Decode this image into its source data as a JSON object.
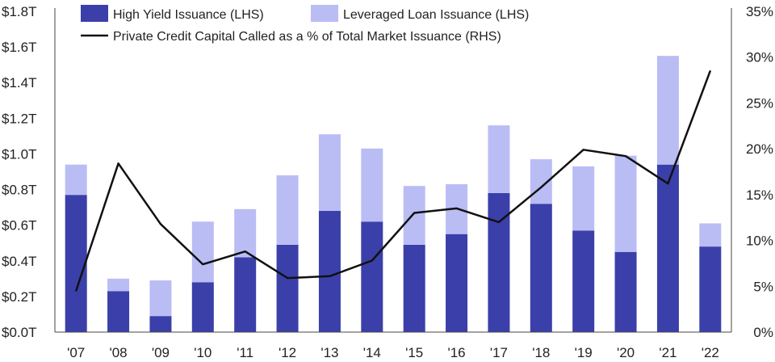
{
  "chart_data": {
    "type": "bar",
    "stacked": true,
    "categories": [
      "'07",
      "'08",
      "'09",
      "'10",
      "'11",
      "'12",
      "'13",
      "'14",
      "'15",
      "'16",
      "'17",
      "'18",
      "'19",
      "'20",
      "'21",
      "'22"
    ],
    "series": [
      {
        "name": "High Yield Issuance (LHS)",
        "axis": "left",
        "type": "bar",
        "color": "#3b3fa9",
        "values": [
          0.77,
          0.23,
          0.09,
          0.28,
          0.42,
          0.49,
          0.68,
          0.62,
          0.49,
          0.55,
          0.78,
          0.72,
          0.57,
          0.45,
          0.94,
          0.48
        ]
      },
      {
        "name": "Leveraged Loan Issuance (LHS)",
        "axis": "left",
        "type": "bar",
        "color": "#babdf4",
        "values": [
          0.17,
          0.07,
          0.2,
          0.34,
          0.27,
          0.39,
          0.43,
          0.41,
          0.33,
          0.28,
          0.38,
          0.25,
          0.36,
          0.54,
          0.61,
          0.13
        ]
      },
      {
        "name": "Private Credit Capital Called as a % of Total Market Issuance (RHS)",
        "axis": "right",
        "type": "line",
        "color": "#111111",
        "values": [
          4.5,
          18.4,
          11.8,
          7.4,
          8.8,
          5.9,
          6.1,
          7.8,
          13.0,
          13.5,
          12.0,
          15.8,
          19.9,
          19.2,
          16.2,
          28.5
        ]
      }
    ],
    "y_left": {
      "ticks": [
        "$0.0T",
        "$0.2T",
        "$0.4T",
        "$0.6T",
        "$0.8T",
        "$1.0T",
        "$1.2T",
        "$1.4T",
        "$1.6T",
        "$1.8T"
      ],
      "range": [
        0,
        1.8
      ]
    },
    "y_right": {
      "ticks": [
        "0%",
        "5%",
        "10%",
        "15%",
        "20%",
        "25%",
        "30%",
        "35%"
      ],
      "range": [
        0,
        35
      ]
    },
    "legend": {
      "position": "top",
      "entries": [
        "High Yield Issuance (LHS)",
        "Leveraged Loan Issuance (LHS)",
        "Private Credit Capital Called as a % of Total Market Issuance (RHS)"
      ]
    },
    "title": "",
    "xlabel": "",
    "ylabel": "",
    "grid": false
  }
}
